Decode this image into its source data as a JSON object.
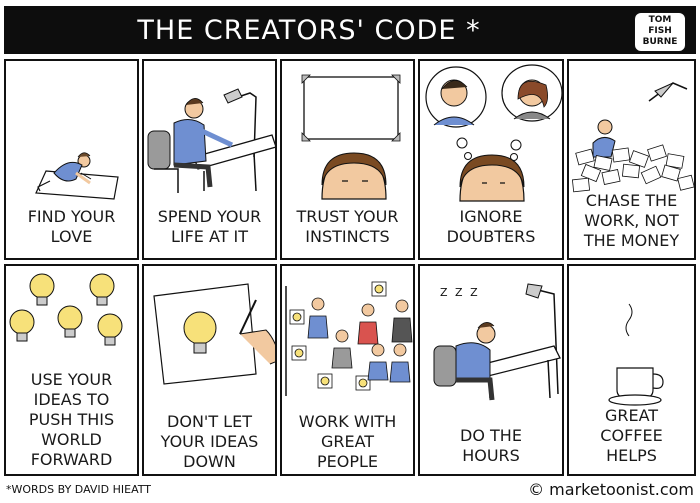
{
  "title": "THE CREATORS' CODE *",
  "logo": {
    "line1": "TOM",
    "line2": "FISH",
    "line3": "BURNE"
  },
  "panels": [
    {
      "caption_line1": "FIND YOUR",
      "caption_line2": "LOVE"
    },
    {
      "caption_line1": "SPEND YOUR",
      "caption_line2": "LIFE AT IT"
    },
    {
      "caption_line1": "TRUST YOUR",
      "caption_line2": "INSTINCTS"
    },
    {
      "caption_line1": "IGNORE",
      "caption_line2": "DOUBTERS"
    },
    {
      "caption_line1": "CHASE THE",
      "caption_line2": "WORK, NOT",
      "caption_line3": "THE MONEY"
    },
    {
      "caption_line1": "USE YOUR",
      "caption_line2": "IDEAS TO",
      "caption_line3": "PUSH THIS",
      "caption_line4": "WORLD",
      "caption_line5": "FORWARD"
    },
    {
      "caption_line1": "DON'T LET",
      "caption_line2": "YOUR IDEAS",
      "caption_line3": "DOWN"
    },
    {
      "caption_line1": "WORK WITH",
      "caption_line2": "GREAT",
      "caption_line3": "PEOPLE"
    },
    {
      "caption_line1": "DO THE",
      "caption_line2": "HOURS",
      "zzz": "Z Z Z"
    },
    {
      "caption_line1": "GREAT",
      "caption_line2": "COFFEE",
      "caption_line3": "HELPS"
    }
  ],
  "footer": {
    "credit": "*WORDS BY DAVID HIEATT",
    "site": "© marketoonist.com"
  },
  "colors": {
    "ink": "#111111",
    "shirt_blue": "#6f8fd1",
    "skin": "#f2c9a0",
    "bulb_yellow": "#f7e17a",
    "gray": "#9a9a9a",
    "red": "#d9534f"
  }
}
